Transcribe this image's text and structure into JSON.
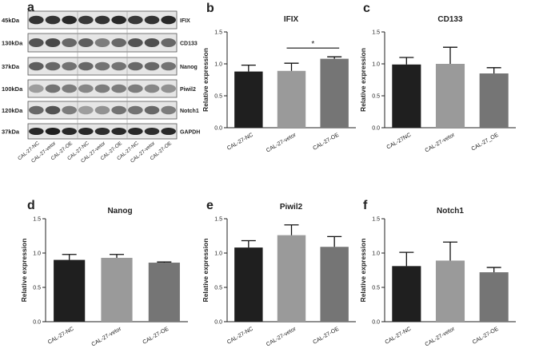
{
  "western_blot": {
    "panel_letter": "a",
    "rows": [
      {
        "mw": "45kDa",
        "protein": "IFIX"
      },
      {
        "mw": "130kDa",
        "protein": "CD133"
      },
      {
        "mw": "37kDa",
        "protein": "Nanog"
      },
      {
        "mw": "100kDa",
        "protein": "Piwil2"
      },
      {
        "mw": "120kDa",
        "protein": "Notch1"
      },
      {
        "mw": "37kDa",
        "protein": "GAPDH"
      }
    ],
    "lanes": [
      "CAL-27-NC",
      "CAL-27-vetor",
      "CAL-27-OE",
      "CAL-27-NC",
      "CAL-27-vetor",
      "CAL-27-OE",
      "CAL-27-NC",
      "CAL-27-vetor",
      "CAL-27-OE"
    ]
  },
  "colors": {
    "nc": "#1f1f1f",
    "vetor": "#9a9a9a",
    "oe": "#757575",
    "axis": "#222222"
  },
  "chart_data": [
    {
      "panel": "b",
      "type": "bar",
      "title": "IFIX",
      "ylabel": "Relative expression",
      "ylim": [
        0,
        1.5
      ],
      "yticks": [
        "0.0",
        "0.5",
        "1.0",
        "1.5"
      ],
      "categories": [
        "CAL-27-NC",
        "CAL-27-vetor",
        "CAL-27-OE"
      ],
      "values": [
        0.88,
        0.89,
        1.08
      ],
      "errors": [
        0.1,
        0.12,
        0.03
      ],
      "significance": {
        "from": 1,
        "to": 2,
        "label": "*"
      }
    },
    {
      "panel": "c",
      "type": "bar",
      "title": "CD133",
      "ylabel": "Relative expression",
      "ylim": [
        0,
        1.5
      ],
      "yticks": [
        "0.0",
        "0.5",
        "1.0",
        "1.5"
      ],
      "categories": [
        "CAL-27NC",
        "CAL-27-vetor",
        "CAL-27_OE"
      ],
      "values": [
        0.99,
        1.0,
        0.85
      ],
      "errors": [
        0.11,
        0.26,
        0.09
      ]
    },
    {
      "panel": "d",
      "type": "bar",
      "title": "Nanog",
      "ylabel": "Relative expression",
      "ylim": [
        0,
        1.5
      ],
      "yticks": [
        "0.0",
        "0.5",
        "1.0",
        "1.5"
      ],
      "categories": [
        "CAL-27-NC",
        "CAL-27-vetor",
        "CAL-27-OE"
      ],
      "values": [
        0.9,
        0.93,
        0.86
      ],
      "errors": [
        0.08,
        0.05,
        0.01
      ]
    },
    {
      "panel": "e",
      "type": "bar",
      "title": "Piwil2",
      "ylabel": "Relative expression",
      "ylim": [
        0,
        1.5
      ],
      "yticks": [
        "0.0",
        "0.5",
        "1.0",
        "1.5"
      ],
      "categories": [
        "CAL-27-NC",
        "CAL-27-vetor",
        "CAL-27-OE"
      ],
      "values": [
        1.08,
        1.26,
        1.09
      ],
      "errors": [
        0.1,
        0.15,
        0.15
      ]
    },
    {
      "panel": "f",
      "type": "bar",
      "title": "Notch1",
      "ylabel": "Relative expression",
      "ylim": [
        0,
        1.5
      ],
      "yticks": [
        "0.0",
        "0.5",
        "1.0",
        "1.5"
      ],
      "categories": [
        "CAL-27-NC",
        "CAL-27-vetor",
        "CAL-27-OE"
      ],
      "values": [
        0.81,
        0.89,
        0.72
      ],
      "errors": [
        0.2,
        0.27,
        0.07
      ]
    }
  ]
}
